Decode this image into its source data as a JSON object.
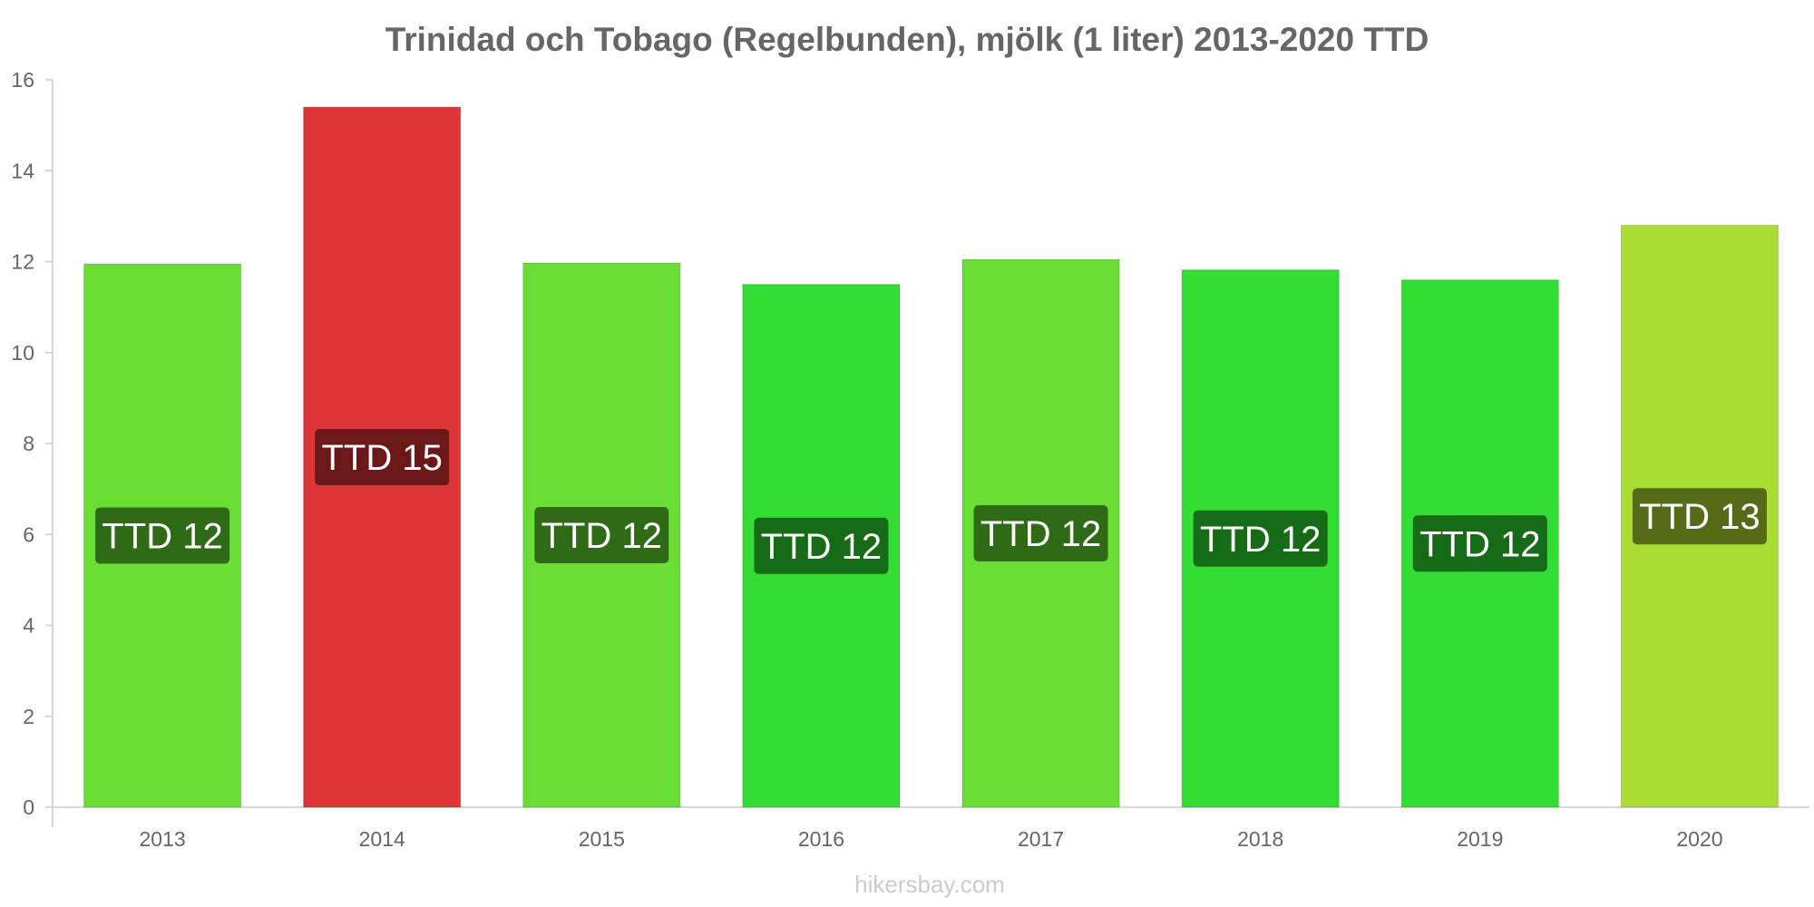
{
  "chart_data": {
    "type": "bar",
    "title": "Trinidad och Tobago (Regelbunden), mjölk (1 liter) 2013-2020 TTD",
    "xlabel": "",
    "ylabel": "",
    "categories": [
      "2013",
      "2014",
      "2015",
      "2016",
      "2017",
      "2018",
      "2019",
      "2020"
    ],
    "values": [
      11.95,
      15.4,
      11.97,
      11.5,
      12.05,
      11.82,
      11.6,
      12.8
    ],
    "data_labels": [
      "TTD 12",
      "TTD 15",
      "TTD 12",
      "TTD 12",
      "TTD 12",
      "TTD 12",
      "TTD 12",
      "TTD 13"
    ],
    "bar_colors": [
      "#6ade34",
      "#dd3535",
      "#6ade34",
      "#33dd33",
      "#6ade34",
      "#33dd33",
      "#33dd33",
      "#aadd33"
    ],
    "label_bg_colors": [
      "#2f6b17",
      "#6b1818",
      "#2f6b17",
      "#166b16",
      "#2f6b17",
      "#166b16",
      "#166b16",
      "#556b17"
    ],
    "ylim": [
      0,
      16
    ],
    "yticks": [
      0,
      2,
      4,
      6,
      8,
      10,
      12,
      14,
      16
    ],
    "grid": false,
    "legend": "none"
  },
  "watermark": "hikersbay.com"
}
